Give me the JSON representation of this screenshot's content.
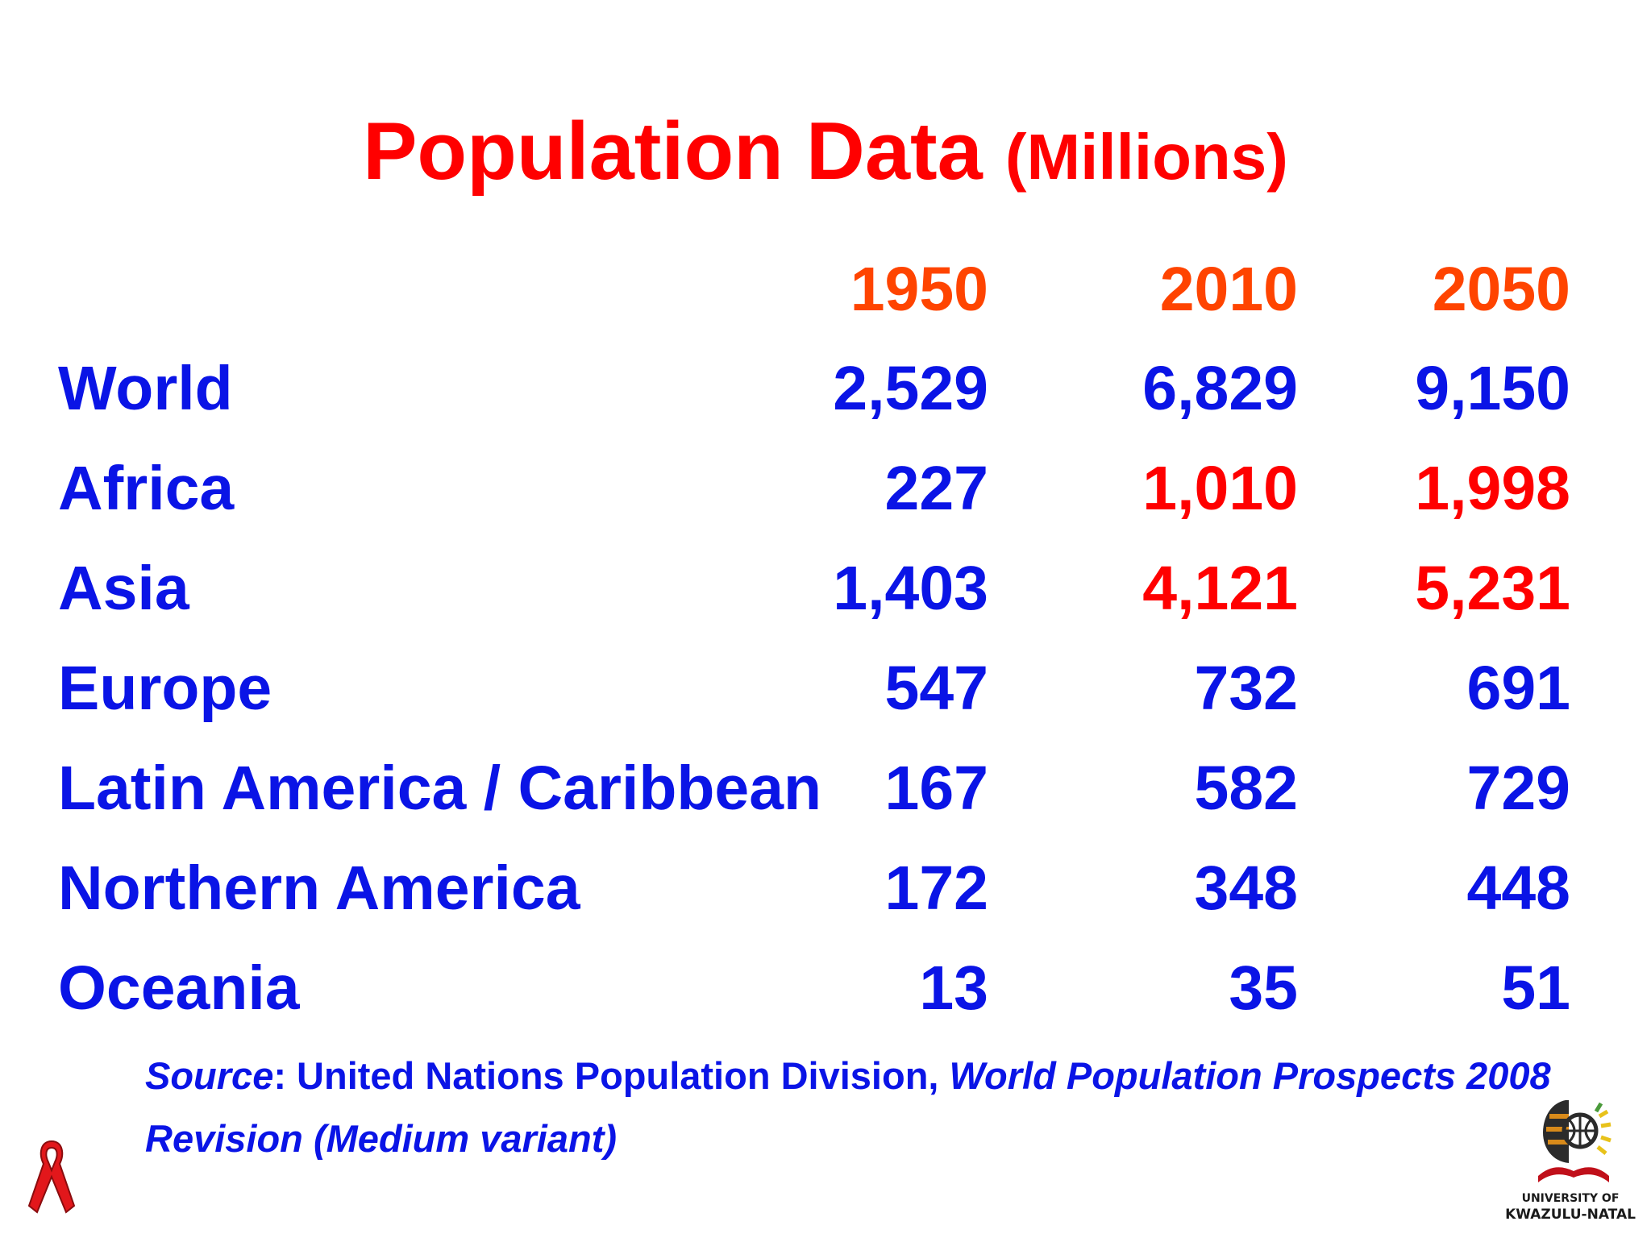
{
  "title": {
    "main": "Population Data ",
    "unit": "(Millions)"
  },
  "table": {
    "years": [
      "1950",
      "2010",
      "2050"
    ],
    "rows": [
      {
        "region": "World",
        "values": [
          "2,529",
          "6,829",
          "9,150"
        ],
        "highlight": [
          false,
          false,
          false
        ]
      },
      {
        "region": "Africa",
        "values": [
          "227",
          "1,010",
          "1,998"
        ],
        "highlight": [
          false,
          true,
          true
        ]
      },
      {
        "region": "Asia",
        "values": [
          "1,403",
          "4,121",
          "5,231"
        ],
        "highlight": [
          false,
          true,
          true
        ]
      },
      {
        "region": "Europe",
        "values": [
          "547",
          "732",
          "691"
        ],
        "highlight": [
          false,
          false,
          false
        ]
      },
      {
        "region": "Latin America / Caribbean",
        "values": [
          "167",
          "582",
          "729"
        ],
        "highlight": [
          false,
          false,
          false
        ]
      },
      {
        "region": "Northern America",
        "values": [
          "172",
          "348",
          "448"
        ],
        "highlight": [
          false,
          false,
          false
        ]
      },
      {
        "region": "Oceania",
        "values": [
          "13",
          "35",
          "51"
        ],
        "highlight": [
          false,
          false,
          false
        ]
      }
    ]
  },
  "source": {
    "label": "Source",
    "text": ": United Nations Population Division, ",
    "publication": "World Population Prospects 2008 Revision (Medium variant)"
  },
  "logos": {
    "ribbon": "red-ribbon-icon",
    "university_line1": "UNIVERSITY OF",
    "university_line2": "KWAZULU-NATAL"
  },
  "colors": {
    "title": "#ff0000",
    "year_header": "#ff4400",
    "body_text": "#0a14e6",
    "highlight": "#ff0000"
  }
}
